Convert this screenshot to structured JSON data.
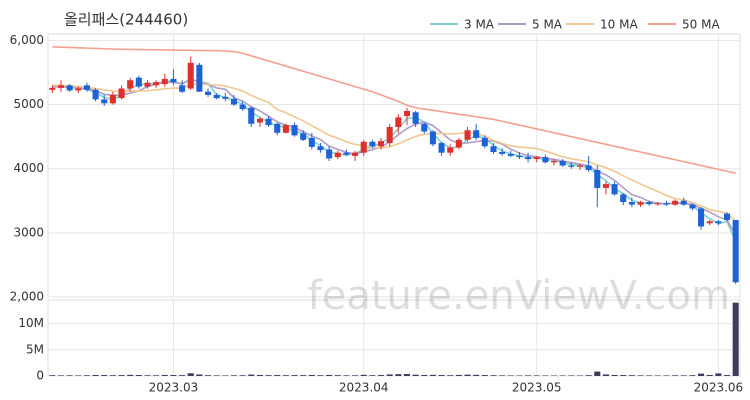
{
  "chart_data": {
    "type": "candlestick",
    "title": "올리패스(244460)",
    "watermark": "feature.enViewV.com",
    "categories": [
      null,
      null,
      null,
      null,
      null,
      null,
      null,
      null,
      null,
      null,
      null,
      null,
      null,
      null,
      null,
      null,
      null,
      null,
      null,
      null,
      null,
      null,
      null,
      null,
      null,
      null,
      null,
      null,
      null,
      null,
      null,
      null,
      null,
      null,
      null,
      null,
      null,
      null,
      null,
      null,
      null,
      null,
      null,
      null,
      null,
      null,
      null,
      null,
      null,
      null,
      null,
      null,
      null,
      null,
      null,
      null,
      null,
      null,
      null,
      null,
      null,
      null,
      null,
      null,
      null,
      null,
      null,
      null,
      null,
      null,
      null,
      null,
      null,
      null,
      null,
      null,
      null,
      null,
      null,
      null
    ],
    "xticks": [
      {
        "value": 14,
        "label": "2023.03"
      },
      {
        "value": 36,
        "label": "2023.04"
      },
      {
        "value": 56,
        "label": "2023.05"
      },
      {
        "value": 77,
        "label": "2023.06"
      }
    ],
    "open": [
      5230,
      5260,
      5300,
      5220,
      5300,
      5230,
      5080,
      5020,
      5100,
      5250,
      5420,
      5280,
      5300,
      5320,
      5400,
      5300,
      5250,
      5620,
      5200,
      5150,
      5120,
      5090,
      5000,
      4950,
      4720,
      4780,
      4700,
      4560,
      4680,
      4550,
      4480,
      4350,
      4300,
      4180,
      4250,
      4200,
      4250,
      4420,
      4350,
      4400,
      4650,
      4820,
      4880,
      4700,
      4580,
      4400,
      4250,
      4330,
      4450,
      4600,
      4480,
      4350,
      4260,
      4230,
      4200,
      4180,
      4150,
      4180,
      4100,
      4120,
      4050,
      4030,
      4050,
      3980,
      3700,
      3760,
      3600,
      3480,
      3440,
      3480,
      3450,
      3460,
      3440,
      3500,
      3440,
      3380,
      3150,
      3180,
      3300,
      3200
    ],
    "high": [
      5300,
      5380,
      5320,
      5280,
      5340,
      5260,
      5150,
      5200,
      5300,
      5420,
      5450,
      5380,
      5380,
      5480,
      5550,
      5380,
      5750,
      5650,
      5250,
      5180,
      5180,
      5150,
      5050,
      4970,
      4800,
      4820,
      4720,
      4700,
      4720,
      4600,
      4560,
      4400,
      4350,
      4280,
      4300,
      4280,
      4450,
      4450,
      4480,
      4700,
      4850,
      4950,
      4900,
      4720,
      4600,
      4420,
      4380,
      4480,
      4650,
      4700,
      4520,
      4400,
      4320,
      4280,
      4260,
      4250,
      4200,
      4220,
      4150,
      4150,
      4100,
      4080,
      4200,
      4050,
      3800,
      3800,
      3620,
      3550,
      3500,
      3500,
      3480,
      3500,
      3520,
      3550,
      3460,
      3400,
      3200,
      3200,
      3320,
      3200
    ],
    "low": [
      5180,
      5200,
      5200,
      5180,
      5200,
      5050,
      4980,
      5000,
      5080,
      5200,
      5250,
      5250,
      5260,
      5280,
      5300,
      5180,
      5230,
      5200,
      5120,
      5080,
      5050,
      4980,
      4900,
      4650,
      4650,
      4650,
      4520,
      4550,
      4500,
      4430,
      4300,
      4250,
      4120,
      4150,
      4200,
      4120,
      4200,
      4320,
      4300,
      4350,
      4550,
      4680,
      4650,
      4550,
      4350,
      4200,
      4200,
      4300,
      4420,
      4450,
      4320,
      4230,
      4200,
      4180,
      4150,
      4100,
      4100,
      4080,
      4050,
      4030,
      4000,
      3980,
      3950,
      3400,
      3600,
      3580,
      3430,
      3400,
      3400,
      3420,
      3420,
      3420,
      3420,
      3420,
      3350,
      3050,
      3120,
      3120,
      3180,
      2200
    ],
    "close": [
      5260,
      5300,
      5220,
      5250,
      5230,
      5080,
      5020,
      5150,
      5250,
      5380,
      5280,
      5340,
      5350,
      5400,
      5350,
      5200,
      5650,
      5200,
      5150,
      5100,
      5090,
      5000,
      4930,
      4700,
      4780,
      4680,
      4560,
      4680,
      4520,
      4450,
      4340,
      4290,
      4160,
      4250,
      4220,
      4250,
      4420,
      4350,
      4430,
      4650,
      4800,
      4900,
      4700,
      4580,
      4380,
      4250,
      4330,
      4450,
      4600,
      4480,
      4350,
      4260,
      4230,
      4200,
      4180,
      4150,
      4180,
      4100,
      4120,
      4050,
      4030,
      4050,
      3980,
      3700,
      3760,
      3600,
      3480,
      3440,
      3480,
      3450,
      3460,
      3440,
      3500,
      3440,
      3380,
      3100,
      3180,
      3150,
      3200,
      2230
    ],
    "up_color": "#e0302d",
    "down_color": "#1e63d6",
    "ylim": [
      2000,
      6100
    ],
    "yticks": [
      {
        "value": 2000,
        "label": "2,000"
      },
      3000,
      4000,
      5000,
      {
        "value": 6000,
        "label": "6,000"
      }
    ],
    "ma": [
      {
        "name": "3 MA",
        "color": "#7fd0d0",
        "values": [
          5270,
          5280,
          5260,
          5257,
          5233,
          5187,
          5110,
          5083,
          5140,
          5260,
          5303,
          5333,
          5323,
          5363,
          5367,
          5317,
          5400,
          5350,
          5333,
          5150,
          5113,
          5063,
          5007,
          4877,
          4803,
          4720,
          4673,
          4640,
          4587,
          4550,
          4437,
          4360,
          4263,
          4233,
          4210,
          4240,
          4297,
          4340,
          4400,
          4477,
          4627,
          4783,
          4800,
          4727,
          4553,
          4403,
          4320,
          4343,
          4460,
          4510,
          4477,
          4363,
          4280,
          4230,
          4203,
          4177,
          4170,
          4143,
          4133,
          4090,
          4067,
          4043,
          4020,
          3910,
          3813,
          3687,
          3613,
          3507,
          3467,
          3457,
          3463,
          3450,
          3467,
          3460,
          3440,
          3307,
          3220,
          3143,
          3177,
          2860
        ]
      },
      {
        "name": "5 MA",
        "color": "#b09cc8",
        "values": [
          5280,
          5280,
          5270,
          5260,
          5252,
          5216,
          5160,
          5146,
          5146,
          5176,
          5216,
          5280,
          5320,
          5350,
          5344,
          5328,
          5390,
          5360,
          5310,
          5260,
          5238,
          5108,
          5054,
          4964,
          4900,
          4818,
          4730,
          4680,
          4644,
          4578,
          4510,
          4456,
          4352,
          4302,
          4252,
          4234,
          4260,
          4298,
          4334,
          4420,
          4530,
          4626,
          4696,
          4726,
          4672,
          4562,
          4448,
          4398,
          4402,
          4422,
          4442,
          4428,
          4384,
          4304,
          4244,
          4204,
          4188,
          4162,
          4146,
          4120,
          4096,
          4070,
          4046,
          3962,
          3904,
          3818,
          3704,
          3596,
          3552,
          3490,
          3462,
          3454,
          3466,
          3458,
          3444,
          3384,
          3324,
          3250,
          3202,
          2972
        ]
      },
      {
        "name": "10 MA",
        "color": "#f0c890",
        "values": [
          5300,
          5300,
          5290,
          5280,
          5270,
          5250,
          5230,
          5210,
          5200,
          5210,
          5213,
          5217,
          5230,
          5245,
          5257,
          5254,
          5317,
          5322,
          5312,
          5307,
          5288,
          5254,
          5212,
          5142,
          5085,
          5034,
          4925,
          4873,
          4810,
          4745,
          4670,
          4599,
          4522,
          4477,
          4421,
          4378,
          4364,
          4331,
          4322,
          4342,
          4388,
          4449,
          4503,
          4536,
          4550,
          4550,
          4541,
          4551,
          4568,
          4551,
          4506,
          4442,
          4395,
          4357,
          4337,
          4327,
          4312,
          4277,
          4229,
          4186,
          4154,
          4133,
          4108,
          4058,
          4016,
          3961,
          3891,
          3825,
          3761,
          3701,
          3644,
          3583,
          3535,
          3509,
          3471,
          3421,
          3363,
          3334,
          3306,
          3184
        ]
      },
      {
        "name": "50 MA",
        "color": "#f4a090",
        "values": [
          5900,
          5895,
          5890,
          5885,
          5880,
          5875,
          5870,
          5865,
          5862,
          5860,
          5858,
          5856,
          5854,
          5852,
          5850,
          5848,
          5846,
          5844,
          5842,
          5840,
          5835,
          5825,
          5800,
          5760,
          5720,
          5680,
          5640,
          5600,
          5560,
          5520,
          5480,
          5440,
          5400,
          5360,
          5320,
          5280,
          5240,
          5200,
          5150,
          5100,
          5050,
          4990,
          4950,
          4930,
          4910,
          4890,
          4870,
          4850,
          4830,
          4810,
          4790,
          4770,
          4740,
          4710,
          4680,
          4650,
          4620,
          4590,
          4560,
          4530,
          4500,
          4470,
          4440,
          4410,
          4380,
          4350,
          4320,
          4290,
          4260,
          4230,
          4200,
          4170,
          4140,
          4110,
          4080,
          4050,
          4020,
          3990,
          3960,
          3930
        ]
      }
    ],
    "volume": {
      "color": "#3d3d5c",
      "values": [
        150000,
        120000,
        130000,
        110000,
        140000,
        200000,
        180000,
        150000,
        170000,
        220000,
        190000,
        140000,
        130000,
        200000,
        180000,
        160000,
        520000,
        300000,
        150000,
        120000,
        110000,
        130000,
        140000,
        280000,
        200000,
        160000,
        180000,
        150000,
        170000,
        160000,
        190000,
        150000,
        200000,
        160000,
        120000,
        130000,
        220000,
        150000,
        180000,
        300000,
        350000,
        380000,
        250000,
        200000,
        220000,
        180000,
        150000,
        200000,
        260000,
        220000,
        180000,
        150000,
        120000,
        110000,
        100000,
        120000,
        110000,
        100000,
        90000,
        100000,
        110000,
        100000,
        150000,
        850000,
        300000,
        200000,
        180000,
        150000,
        120000,
        110000,
        100000,
        110000,
        130000,
        120000,
        150000,
        450000,
        200000,
        500000,
        180000,
        14000000
      ],
      "ylim": [
        0,
        14500000
      ],
      "yticks": [
        0,
        {
          "value": 5000000,
          "label": "5M"
        },
        {
          "value": 10000000,
          "label": "10M"
        }
      ]
    }
  }
}
